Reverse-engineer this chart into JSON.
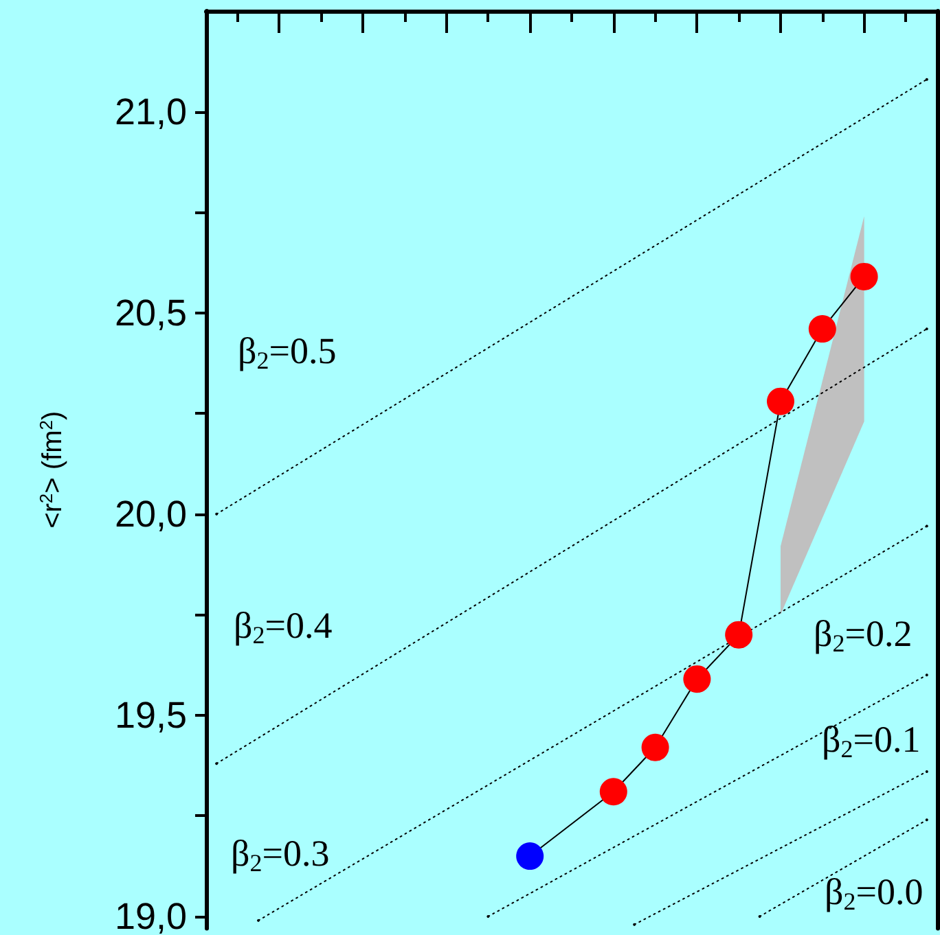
{
  "chart_data": {
    "type": "line",
    "ylabel": "<r$^{2}$> (fm$^{2}$)",
    "categories": [
      null,
      null,
      null,
      null,
      null,
      null,
      null,
      null,
      null,
      null,
      null,
      null,
      null,
      null,
      null,
      null,
      null,
      null,
      null,
      null,
      null,
      null,
      null,
      null,
      null,
      null,
      null,
      null,
      null,
      null,
      null,
      null,
      null,
      null,
      null
    ],
    "ylim": [
      18.97,
      21.25
    ],
    "yticks": [
      {
        "value": 19,
        "label": "19,0"
      },
      {
        "value": 19.25,
        "label": null
      },
      {
        "value": 19.5,
        "label": "19,5"
      },
      {
        "value": 19.75,
        "label": null
      },
      {
        "value": 20,
        "label": "20,0"
      },
      {
        "value": 20.25,
        "label": null
      },
      {
        "value": 20.5,
        "label": "20,5"
      },
      {
        "value": 20.75,
        "label": null
      },
      {
        "value": 21,
        "label": "21,0"
      }
    ],
    "grid": false,
    "series": [
      {
        "color": "#c0c0c0",
        "values": [
          null,
          null,
          null,
          null,
          null,
          null,
          null,
          null,
          null,
          null,
          null,
          null,
          null,
          null,
          null,
          null,
          null,
          null,
          null,
          null,
          null,
          null,
          null,
          null,
          null,
          null,
          null,
          null,
          null,
          null,
          null,
          null,
          null,
          null,
          null
        ],
        "lower": [
          null,
          null,
          null,
          null,
          null,
          null,
          null,
          null,
          null,
          null,
          null,
          null,
          null,
          null,
          null,
          null,
          null,
          null,
          null,
          null,
          null,
          null,
          null,
          null,
          null,
          null,
          null,
          19.75,
          null,
          null,
          null,
          20.23,
          null,
          null,
          null
        ],
        "upper": [
          null,
          null,
          null,
          null,
          null,
          null,
          null,
          null,
          null,
          null,
          null,
          null,
          null,
          null,
          null,
          null,
          null,
          null,
          null,
          null,
          null,
          null,
          null,
          null,
          null,
          null,
          null,
          19.92,
          null,
          null,
          null,
          20.74,
          null,
          null,
          null
        ]
      },
      {
        "color": "#000000",
        "marker": "none",
        "line_style": "dotted",
        "values": [
          20.0,
          null,
          null,
          null,
          null,
          null,
          null,
          null,
          null,
          null,
          null,
          null,
          null,
          null,
          null,
          null,
          null,
          null,
          null,
          null,
          null,
          null,
          null,
          null,
          null,
          null,
          null,
          null,
          null,
          null,
          null,
          null,
          null,
          null,
          21.08
        ]
      },
      {
        "color": "#000000",
        "marker": "none",
        "line_style": "dotted",
        "values": [
          19.38,
          null,
          null,
          null,
          null,
          null,
          null,
          null,
          null,
          null,
          null,
          null,
          null,
          null,
          null,
          null,
          null,
          null,
          null,
          null,
          null,
          null,
          null,
          null,
          null,
          null,
          null,
          null,
          null,
          null,
          null,
          null,
          null,
          null,
          20.46
        ]
      },
      {
        "color": "#000000",
        "marker": "none",
        "line_style": "dotted",
        "values": [
          null,
          null,
          18.99,
          null,
          null,
          null,
          null,
          null,
          null,
          null,
          null,
          null,
          null,
          null,
          null,
          null,
          null,
          null,
          null,
          null,
          null,
          null,
          null,
          null,
          null,
          null,
          null,
          null,
          null,
          null,
          null,
          null,
          null,
          null,
          19.97
        ]
      },
      {
        "color": "#000000",
        "marker": "none",
        "line_style": "dotted",
        "values": [
          null,
          null,
          null,
          null,
          null,
          null,
          null,
          null,
          null,
          null,
          null,
          null,
          null,
          19.0,
          null,
          null,
          null,
          null,
          null,
          null,
          null,
          null,
          null,
          null,
          null,
          null,
          null,
          null,
          null,
          null,
          null,
          null,
          null,
          null,
          19.6
        ]
      },
      {
        "color": "#000000",
        "marker": "none",
        "line_style": "dotted",
        "values": [
          null,
          null,
          null,
          null,
          null,
          null,
          null,
          null,
          null,
          null,
          null,
          null,
          null,
          null,
          null,
          null,
          null,
          null,
          null,
          null,
          18.98,
          null,
          null,
          null,
          null,
          null,
          null,
          null,
          null,
          null,
          null,
          null,
          null,
          null,
          19.36
        ]
      },
      {
        "color": "#000000",
        "marker": "none",
        "line_style": "dotted",
        "values": [
          null,
          null,
          null,
          null,
          null,
          null,
          null,
          null,
          null,
          null,
          null,
          null,
          null,
          null,
          null,
          null,
          null,
          null,
          null,
          null,
          null,
          null,
          null,
          null,
          null,
          null,
          19.0,
          null,
          null,
          null,
          null,
          null,
          null,
          null,
          19.24
        ]
      },
      {
        "color": "#000000",
        "marker": "circle",
        "line_style": "solid",
        "values": [
          null,
          null,
          null,
          null,
          null,
          null,
          null,
          null,
          null,
          null,
          null,
          null,
          null,
          null,
          null,
          19.15,
          null,
          null,
          null,
          19.31,
          null,
          19.42,
          null,
          19.59,
          null,
          19.7,
          null,
          20.28,
          null,
          20.46,
          null,
          20.59,
          null,
          null,
          null
        ],
        "colors": [
          null,
          null,
          null,
          null,
          null,
          null,
          null,
          null,
          null,
          null,
          null,
          null,
          null,
          null,
          null,
          "#0000ff",
          null,
          null,
          null,
          "#ff0000",
          null,
          "#ff0000",
          null,
          "#ff0000",
          null,
          "#ff0000",
          null,
          "#ff0000",
          null,
          "#ff0000",
          null,
          "#ff0000",
          null,
          null,
          null
        ]
      }
    ],
    "annotations": [
      "β$_{2}$=0.5",
      "β$_{2}$=0.4",
      "β$_{2}$=0.3",
      "β$_{2}$=0.2",
      "β$_{2}$=0.1",
      "β$_{2}$=0.0"
    ]
  }
}
